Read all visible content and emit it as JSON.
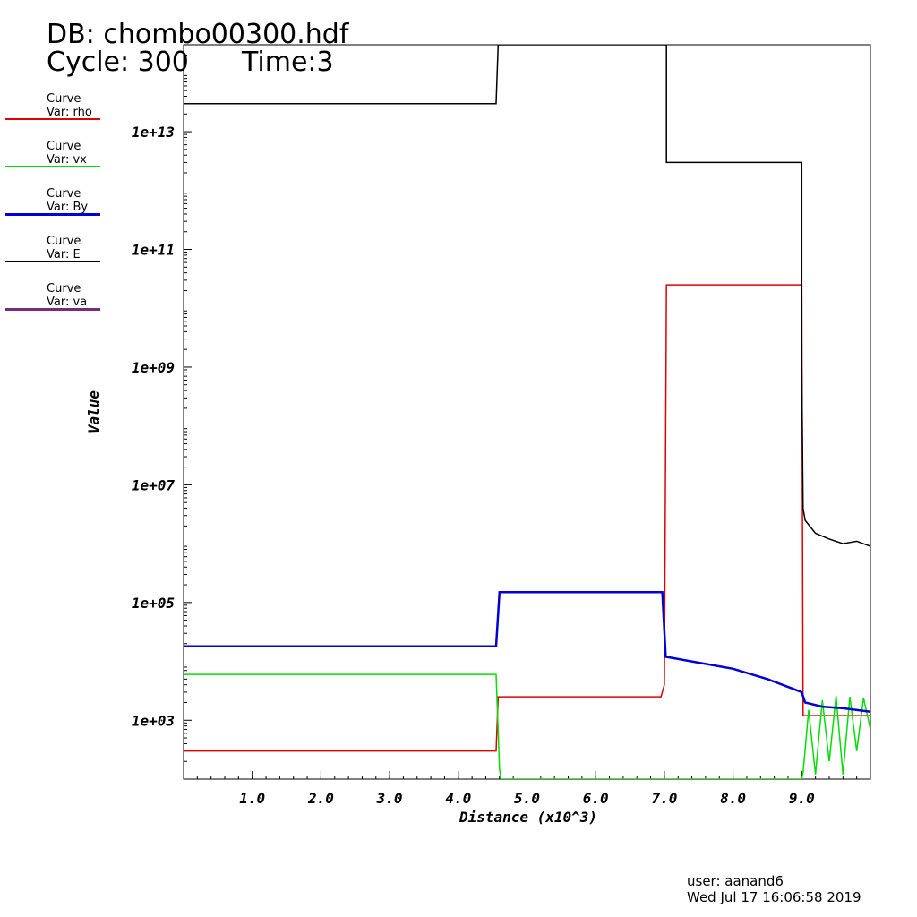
{
  "header": {
    "db_title": "DB: chombo00300.hdf",
    "cycle_label": "Cycle: 300",
    "time_label": "Time:3"
  },
  "legend": [
    {
      "line1": "Curve",
      "line2": "Var: rho",
      "color": "#e00000"
    },
    {
      "line1": "Curve",
      "line2": "Var: vx",
      "color": "#00e000"
    },
    {
      "line1": "Curve",
      "line2": "Var: By",
      "color": "#0000d8"
    },
    {
      "line1": "Curve",
      "line2": "Var: E",
      "color": "#000000"
    },
    {
      "line1": "Curve",
      "line2": "Var: va",
      "color": "#7a2a7a"
    }
  ],
  "footer": {
    "user": "user: aanand6",
    "date": "Wed Jul 17 16:06:58 2019"
  },
  "chart_data": {
    "type": "line",
    "xlabel": "Distance (x10^3)",
    "ylabel": "Value",
    "x_scale": "linear",
    "y_scale": "log",
    "xlim": [
      0.0,
      10.0
    ],
    "ylim": [
      100,
      300000000000000.0
    ],
    "x_ticks": [
      "1.0",
      "2.0",
      "3.0",
      "4.0",
      "5.0",
      "6.0",
      "7.0",
      "8.0",
      "9.0"
    ],
    "x_tick_values": [
      1,
      2,
      3,
      4,
      5,
      6,
      7,
      8,
      9
    ],
    "y_ticks": [
      "1e+03",
      "1e+05",
      "1e+07",
      "1e+09",
      "1e+11",
      "1e+13"
    ],
    "y_tick_values": [
      1000.0,
      100000.0,
      10000000.0,
      1000000000.0,
      100000000000.0,
      10000000000000.0
    ],
    "series": [
      {
        "var": "rho",
        "color": "#e00000",
        "x": [
          0,
          4.55,
          4.58,
          6.95,
          7.0,
          7.03,
          9.0,
          9.02,
          10.0
        ],
        "y": [
          300,
          300,
          2500,
          2500,
          4000,
          25000000000.0,
          25000000000.0,
          1200,
          1200
        ]
      },
      {
        "var": "vx",
        "color": "#00e000",
        "x": [
          0,
          4.55,
          4.6,
          4.62,
          9.0,
          9.02,
          9.1,
          9.2,
          9.3,
          9.4,
          9.5,
          9.6,
          9.7,
          9.8,
          9.9,
          10.0
        ],
        "y": [
          6000,
          6000,
          150,
          100,
          100,
          130,
          1500,
          120,
          2200,
          200,
          2600,
          120,
          2500,
          300,
          2400,
          700
        ]
      },
      {
        "var": "By",
        "color": "#0000d8",
        "x": [
          0,
          4.55,
          4.6,
          6.97,
          7.02,
          7.5,
          8.0,
          8.5,
          9.0,
          9.05,
          9.3,
          9.6,
          10.0
        ],
        "y": [
          18000,
          18000,
          150000,
          150000,
          12000,
          9500,
          7500,
          5000,
          3000,
          2000,
          1700,
          1600,
          1400
        ]
      },
      {
        "var": "E",
        "color": "#000000",
        "x": [
          0,
          4.55,
          4.58,
          7.03,
          7.03,
          9.0,
          9.0,
          9.02,
          9.05,
          9.2,
          9.4,
          9.6,
          9.8,
          10.0
        ],
        "y": [
          30000000000000.0,
          30000000000000.0,
          300000000000000.0,
          300000000000000.0,
          3000000000000.0,
          3000000000000.0,
          1000000000.0,
          4000000.0,
          2500000.0,
          1500000.0,
          1200000.0,
          1000000.0,
          1100000.0,
          900000.0
        ]
      },
      {
        "var": "va",
        "color": "#7a2a7a",
        "x": [],
        "y": []
      }
    ]
  }
}
